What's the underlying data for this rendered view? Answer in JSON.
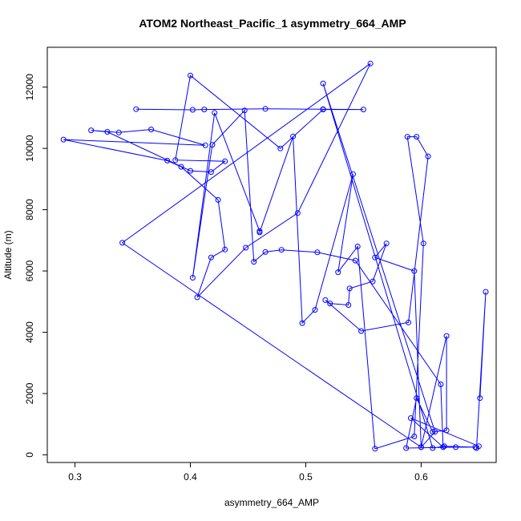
{
  "chart_data": {
    "type": "line",
    "title": "ATOM2 Northeast_Pacific_1 asymmetry_664_AMP",
    "xlabel": "asymmetry_664_AMP",
    "ylabel": "Altitude (m)",
    "xlim": [
      0.276,
      0.665
    ],
    "ylim": [
      -250,
      13300
    ],
    "xticks": [
      0.3,
      0.4,
      0.5,
      0.6
    ],
    "yticks": [
      0,
      2000,
      4000,
      6000,
      8000,
      10000,
      12000
    ],
    "colors": {
      "series": "#0000ff",
      "axes": "#000000",
      "background": "#ffffff"
    },
    "series": [
      {
        "x": [
          0.353,
          0.402,
          0.412,
          0.465,
          0.515,
          0.55,
          0.515,
          0.478,
          0.4,
          0.387,
          0.43,
          0.418,
          0.4,
          0.328,
          0.314,
          0.338,
          0.366,
          0.413,
          0.29,
          0.38,
          0.392,
          0.424,
          0.43,
          0.418,
          0.406,
          0.448,
          0.493,
          0.556,
          0.341,
          0.6,
          0.612,
          0.515,
          0.61,
          0.62,
          0.647,
          0.63,
          0.587,
          0.596,
          0.61,
          0.622,
          0.622,
          0.6,
          0.594,
          0.56,
          0.57,
          0.558,
          0.538,
          0.537,
          0.521,
          0.517,
          0.548,
          0.589,
          0.606,
          0.596,
          0.588,
          0.602,
          0.594,
          0.56,
          0.545,
          0.528,
          0.541,
          0.508,
          0.497,
          0.489,
          0.46,
          0.46,
          0.421,
          0.402,
          0.419,
          0.447,
          0.455,
          0.465,
          0.479,
          0.51,
          0.543,
          0.617,
          0.619,
          0.591,
          0.65,
          0.648,
          0.656,
          0.651
        ],
        "y": [
          11280,
          11260,
          11270,
          11290,
          11280,
          11270,
          11270,
          10000,
          12380,
          9620,
          9580,
          9230,
          9270,
          10540,
          10590,
          10520,
          10620,
          10100,
          10290,
          9600,
          9400,
          8320,
          6700,
          6440,
          5140,
          6760,
          7890,
          12770,
          6920,
          250,
          750,
          12120,
          220,
          280,
          250,
          250,
          220,
          1850,
          750,
          800,
          3880,
          250,
          6000,
          6440,
          6900,
          5660,
          5430,
          4890,
          4940,
          5050,
          4040,
          4320,
          9740,
          10380,
          10380,
          6900,
          600,
          200,
          6800,
          5960,
          9160,
          4730,
          4300,
          10390,
          7260,
          7300,
          11160,
          5780,
          10120,
          11240,
          6300,
          6620,
          6690,
          6610,
          6340,
          2300,
          250,
          1200,
          280,
          220,
          5320,
          1850
        ]
      }
    ]
  }
}
